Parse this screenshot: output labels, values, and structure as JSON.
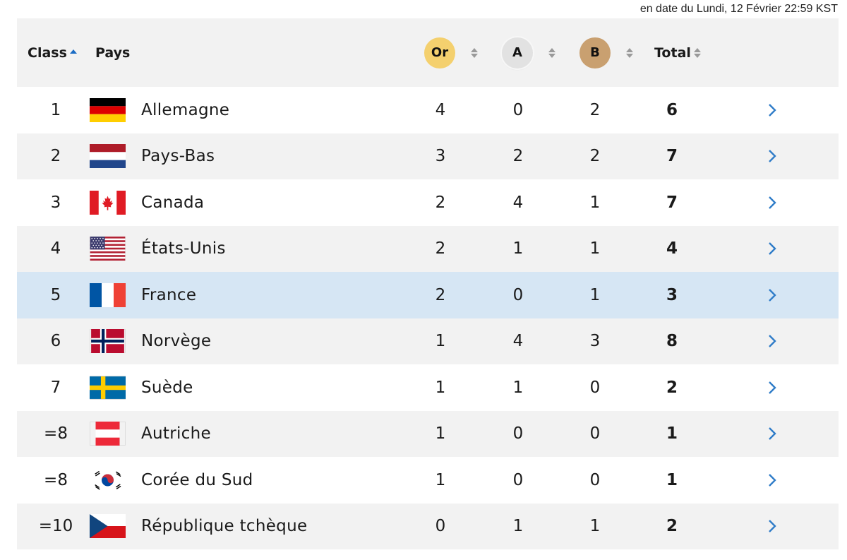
{
  "timestamp": "en date du Lundi, 12 Février 22:59 KST",
  "header": {
    "rank_label": "Class",
    "country_label": "Pays",
    "gold_label": "Or",
    "silver_label": "A",
    "bronze_label": "B",
    "total_label": "Total"
  },
  "colors": {
    "gold": "#f4d06e",
    "silver": "#e2e2e2",
    "bronze": "#c9a070",
    "highlight": "#d6e6f4",
    "accent": "#1b6cc4"
  },
  "rows": [
    {
      "rank": "1",
      "country": "Allemagne",
      "flag": "germany-flag",
      "gold": "4",
      "silver": "0",
      "bronze": "2",
      "total": "6"
    },
    {
      "rank": "2",
      "country": "Pays-Bas",
      "flag": "netherlands-flag",
      "gold": "3",
      "silver": "2",
      "bronze": "2",
      "total": "7"
    },
    {
      "rank": "3",
      "country": "Canada",
      "flag": "canada-flag",
      "gold": "2",
      "silver": "4",
      "bronze": "1",
      "total": "7"
    },
    {
      "rank": "4",
      "country": "États-Unis",
      "flag": "usa-flag",
      "gold": "2",
      "silver": "1",
      "bronze": "1",
      "total": "4"
    },
    {
      "rank": "5",
      "country": "France",
      "flag": "france-flag",
      "gold": "2",
      "silver": "0",
      "bronze": "1",
      "total": "3"
    },
    {
      "rank": "6",
      "country": "Norvège",
      "flag": "norway-flag",
      "gold": "1",
      "silver": "4",
      "bronze": "3",
      "total": "8"
    },
    {
      "rank": "7",
      "country": "Suède",
      "flag": "sweden-flag",
      "gold": "1",
      "silver": "1",
      "bronze": "0",
      "total": "2"
    },
    {
      "rank": "=8",
      "country": "Autriche",
      "flag": "austria-flag",
      "gold": "1",
      "silver": "0",
      "bronze": "0",
      "total": "1"
    },
    {
      "rank": "=8",
      "country": "Corée du Sud",
      "flag": "south-korea-flag",
      "gold": "1",
      "silver": "0",
      "bronze": "0",
      "total": "1"
    },
    {
      "rank": "=10",
      "country": "République tchèque",
      "flag": "czech-republic-flag",
      "gold": "0",
      "silver": "1",
      "bronze": "1",
      "total": "2"
    }
  ]
}
